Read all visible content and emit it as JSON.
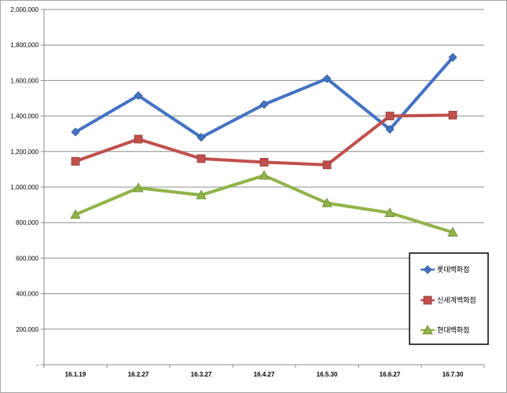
{
  "chart_data": {
    "type": "line",
    "title": "",
    "xlabel": "",
    "ylabel": "",
    "categories": [
      "16.1.19",
      "16.2.27",
      "16.3.27",
      "16.4.27",
      "16.5.30",
      "16.6.27",
      "16.7.30"
    ],
    "ylim": [
      0,
      2000000
    ],
    "yticks": [
      0,
      200000,
      400000,
      600000,
      800000,
      1000000,
      1200000,
      1400000,
      1600000,
      1800000,
      2000000
    ],
    "ytick_labels": [
      "-",
      "200,000",
      "400,000",
      "600,000",
      "800,000",
      "1,000,000",
      "1,200,000",
      "1,400,000",
      "1,600,000",
      "1,800,000",
      "2,000,000"
    ],
    "grid": true,
    "legend_position": "right",
    "series": [
      {
        "name": "롯데백화점",
        "color": "#4472c4",
        "marker": "diamond",
        "values": [
          1310000,
          1515000,
          1280000,
          1465000,
          1610000,
          1325000,
          1730000
        ]
      },
      {
        "name": "신세계백화점",
        "color": "#c0504d",
        "marker": "square",
        "values": [
          1145000,
          1270000,
          1160000,
          1140000,
          1125000,
          1400000,
          1405000
        ]
      },
      {
        "name": "현대백화점",
        "color": "#8fb449",
        "marker": "triangle",
        "values": [
          845000,
          995000,
          955000,
          1065000,
          910000,
          855000,
          745000
        ]
      }
    ]
  }
}
